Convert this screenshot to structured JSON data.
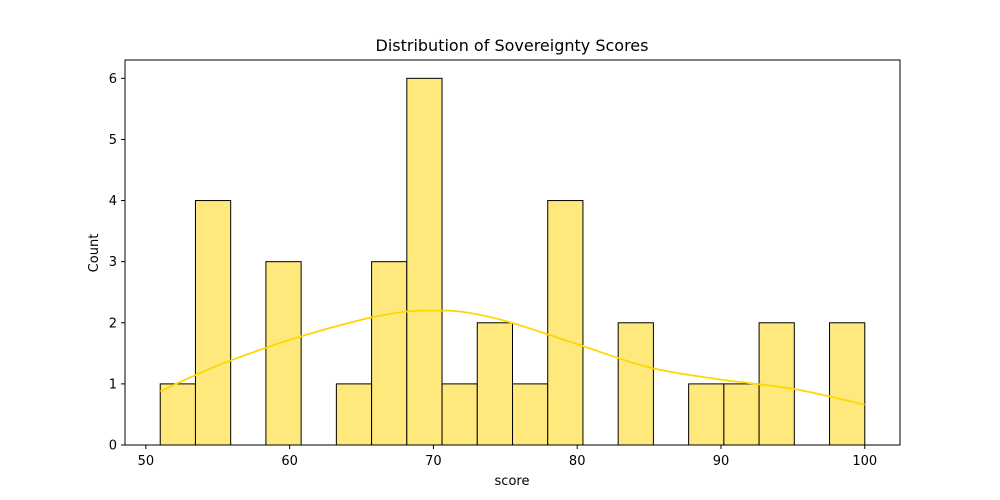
{
  "chart_data": {
    "type": "bar",
    "title": "Distribution of Sovereignty Scores",
    "xlabel": "score",
    "ylabel": "Count",
    "xlim": [
      48.55,
      102.45
    ],
    "ylim": [
      0,
      6.3
    ],
    "xticks": [
      50,
      60,
      70,
      80,
      90,
      100
    ],
    "yticks": [
      0,
      1,
      2,
      3,
      4,
      5,
      6
    ],
    "grid": false,
    "legend": "none",
    "bins": [
      {
        "start": 51.0,
        "end": 53.45,
        "count": 1
      },
      {
        "start": 53.45,
        "end": 55.9,
        "count": 4
      },
      {
        "start": 55.9,
        "end": 58.35,
        "count": 0
      },
      {
        "start": 58.35,
        "end": 60.8,
        "count": 3
      },
      {
        "start": 60.8,
        "end": 63.25,
        "count": 0
      },
      {
        "start": 63.25,
        "end": 65.7,
        "count": 1
      },
      {
        "start": 65.7,
        "end": 68.15,
        "count": 3
      },
      {
        "start": 68.15,
        "end": 70.6,
        "count": 6
      },
      {
        "start": 70.6,
        "end": 73.05,
        "count": 1
      },
      {
        "start": 73.05,
        "end": 75.5,
        "count": 2
      },
      {
        "start": 75.5,
        "end": 77.95,
        "count": 1
      },
      {
        "start": 77.95,
        "end": 80.4,
        "count": 4
      },
      {
        "start": 80.4,
        "end": 82.85,
        "count": 0
      },
      {
        "start": 82.85,
        "end": 85.3,
        "count": 2
      },
      {
        "start": 85.3,
        "end": 87.75,
        "count": 0
      },
      {
        "start": 87.75,
        "end": 90.2,
        "count": 1
      },
      {
        "start": 90.2,
        "end": 92.65,
        "count": 1
      },
      {
        "start": 92.65,
        "end": 95.1,
        "count": 2
      },
      {
        "start": 95.1,
        "end": 97.55,
        "count": 0
      },
      {
        "start": 97.55,
        "end": 100.0,
        "count": 2
      }
    ],
    "kde": {
      "x": [
        51,
        55,
        60,
        65,
        68,
        70,
        72,
        75,
        80,
        85,
        90,
        95,
        100
      ],
      "y": [
        0.88,
        1.3,
        1.72,
        2.05,
        2.18,
        2.2,
        2.18,
        2.03,
        1.65,
        1.27,
        1.07,
        0.92,
        0.66
      ]
    },
    "colors": {
      "bar_fill": "#ffe87c",
      "bar_edge": "#000000",
      "kde_line": "#ffd700"
    }
  }
}
